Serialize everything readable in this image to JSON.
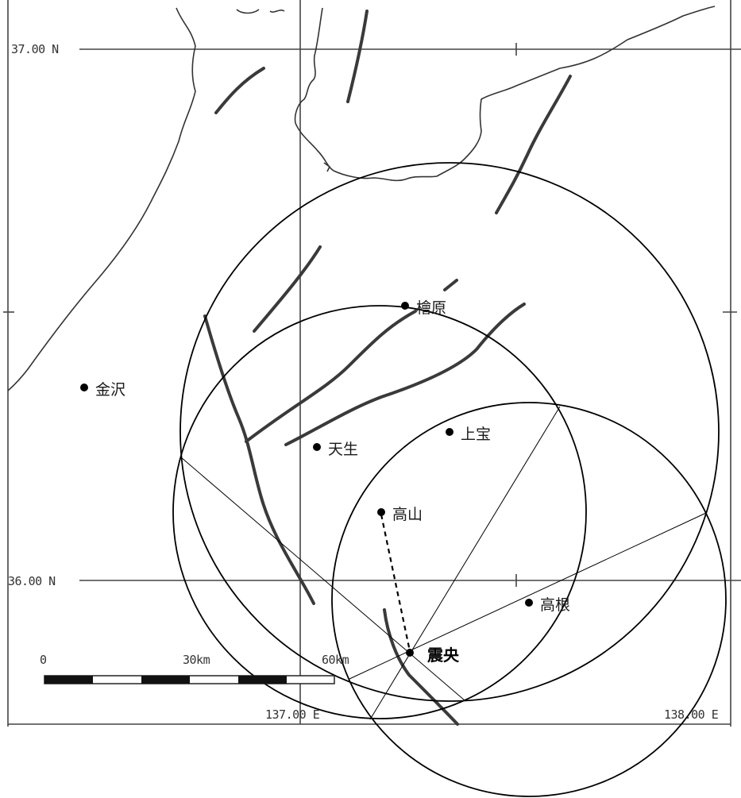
{
  "map": {
    "lat_labels": {
      "top": "37.00 N",
      "bottom": "36.00 N"
    },
    "lon_labels": {
      "left": "137.00 E",
      "right": "138.00 E"
    },
    "stations": [
      {
        "key": "kamioka_top",
        "name": "檜原"
      },
      {
        "key": "kanazawa",
        "name": "金沢"
      },
      {
        "key": "kamitakara",
        "name": "上宝"
      },
      {
        "key": "amo",
        "name": "天生"
      },
      {
        "key": "takayama",
        "name": "高山"
      },
      {
        "key": "takane",
        "name": "高根"
      }
    ],
    "epicenter_label": "震央",
    "scale_bar": {
      "labels": [
        "0",
        "30km",
        "60km"
      ]
    }
  }
}
